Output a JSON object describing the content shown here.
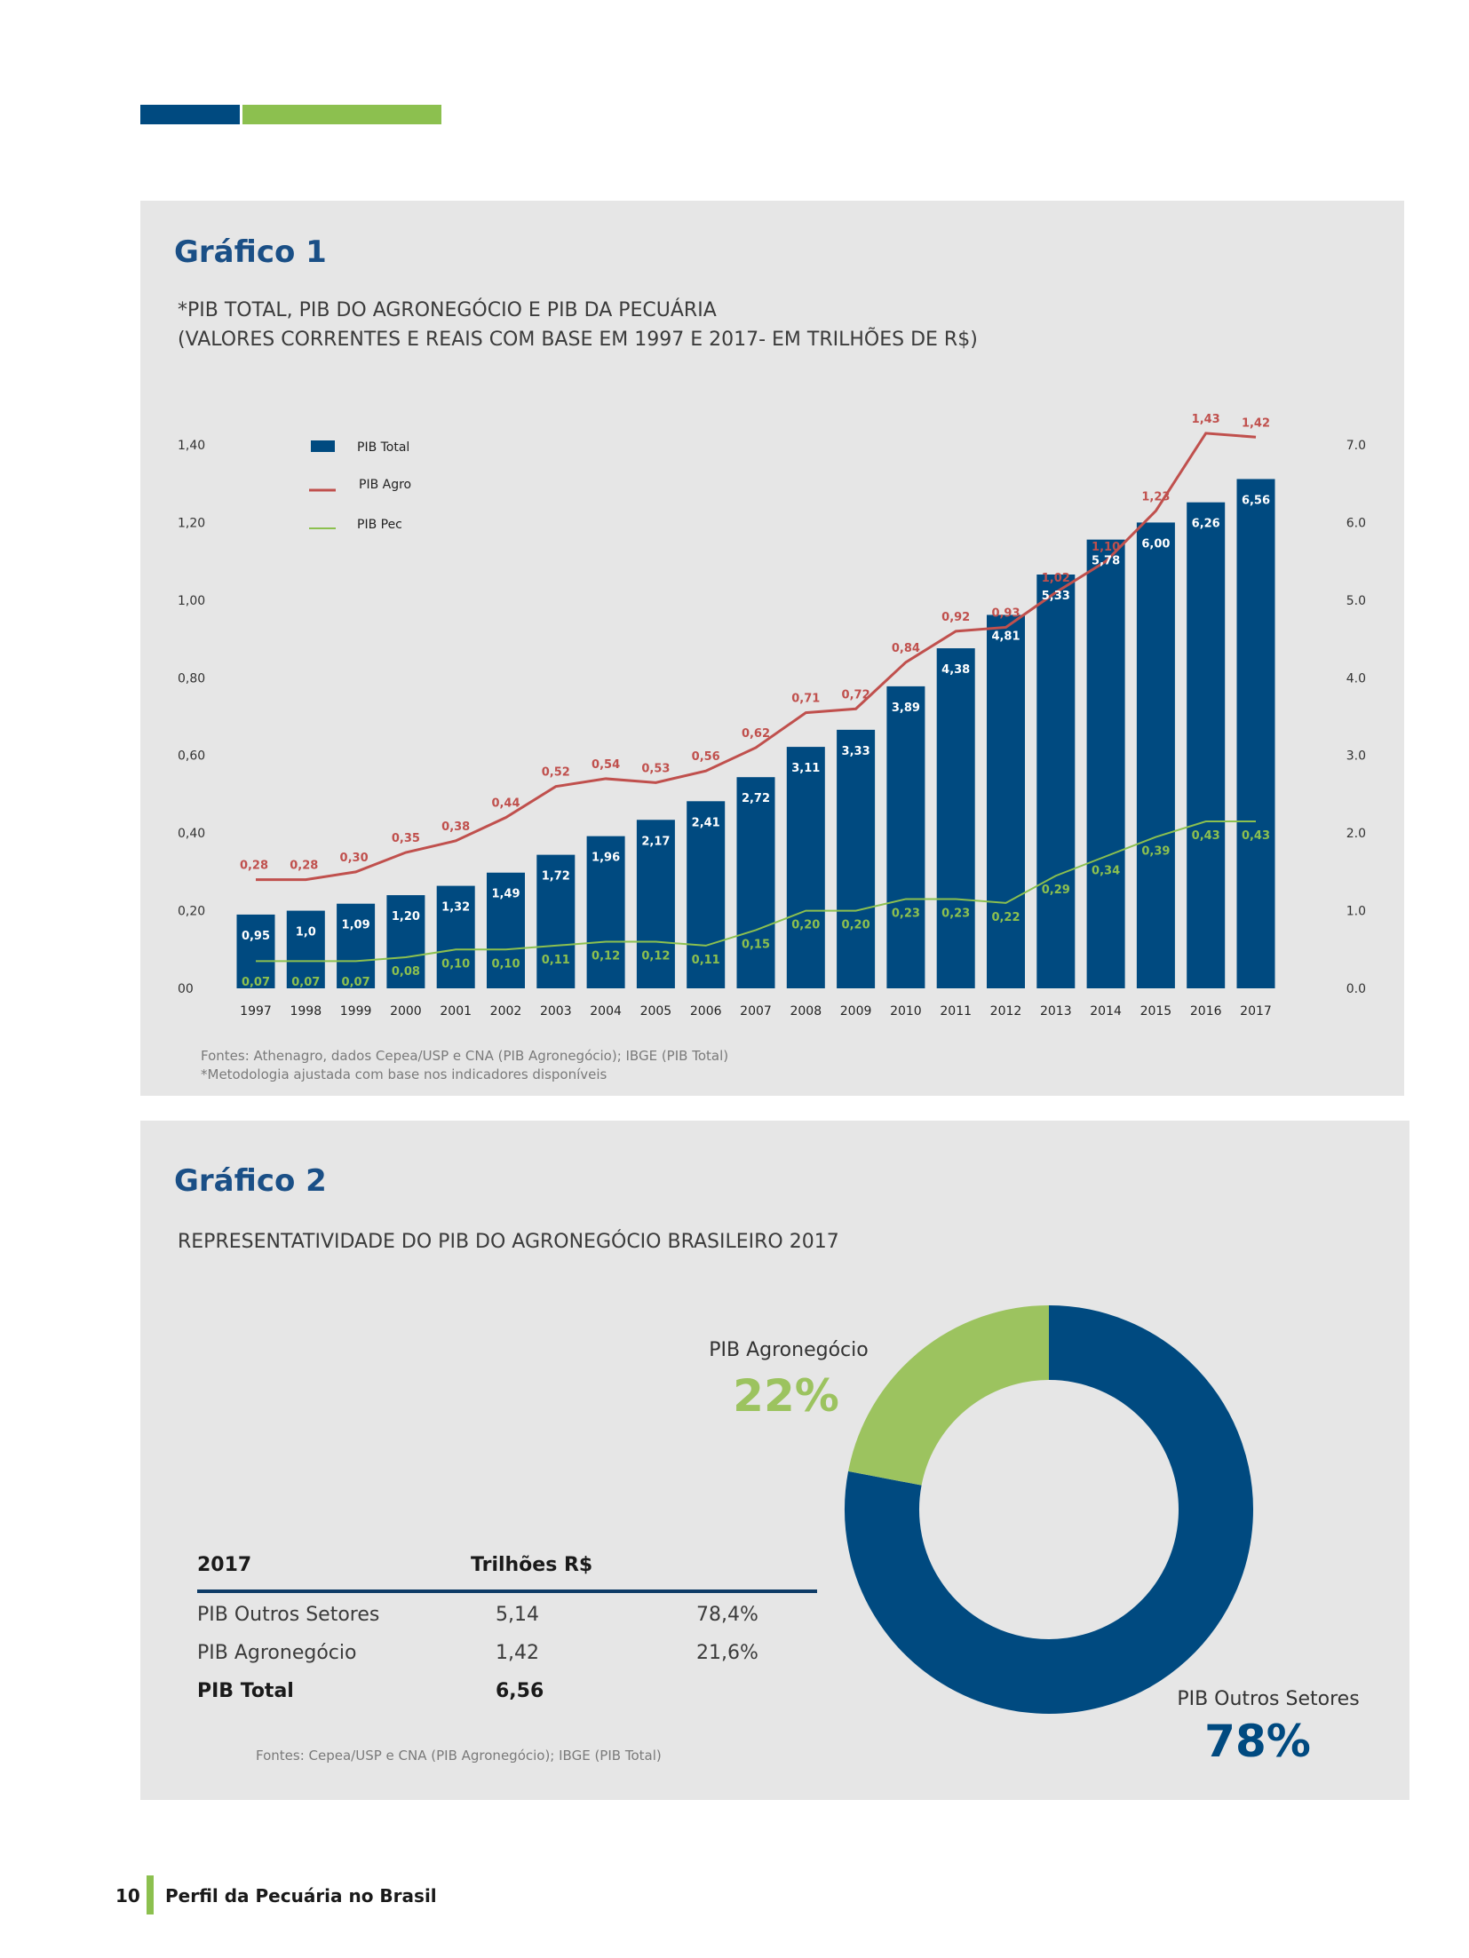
{
  "header_bar": {
    "colors": [
      "#004a80",
      "#8cc04f"
    ]
  },
  "figure1": {
    "title": "Gráfico 1",
    "subtitle_line1": "*PIB TOTAL, PIB DO AGRONEGÓCIO E PIB DA PECUÁRIA",
    "subtitle_line2": "(VALORES CORRENTES E REAIS COM BASE EM 1997 E 2017- EM TRILHÕES DE R$)",
    "source_line1": "Fontes: Athenagro, dados Cepea/USP e CNA (PIB Agronegócio); IBGE (PIB Total)",
    "source_line2": "*Metodologia ajustada com base nos indicadores disponíveis"
  },
  "chart_data": [
    {
      "type": "bar",
      "categories": [
        "1997",
        "1998",
        "1999",
        "2000",
        "2001",
        "2002",
        "2003",
        "2004",
        "2005",
        "2006",
        "2007",
        "2008",
        "2009",
        "2010",
        "2011",
        "2012",
        "2013",
        "2014",
        "2015",
        "2016",
        "2017"
      ],
      "series": [
        {
          "name": "PIB Total",
          "kind": "bar",
          "axis": "right",
          "color": "#004a80",
          "values": [
            0.95,
            1.0,
            1.09,
            1.2,
            1.32,
            1.49,
            1.72,
            1.96,
            2.17,
            2.41,
            2.72,
            3.11,
            3.33,
            3.89,
            4.38,
            4.81,
            5.33,
            5.78,
            6.0,
            6.26,
            6.56
          ],
          "labels": [
            "0,95",
            "1,0",
            "1,09",
            "1,20",
            "1,32",
            "1,49",
            "1,72",
            "1,96",
            "2,17",
            "2,41",
            "2,72",
            "3,11",
            "3,33",
            "3,89",
            "4,38",
            "4,81",
            "5,33",
            "5,78",
            "6,00",
            "6,26",
            "6,56"
          ]
        },
        {
          "name": "PIB Agro",
          "kind": "line",
          "axis": "left",
          "color": "#c0504d",
          "values": [
            0.28,
            0.28,
            0.3,
            0.35,
            0.38,
            0.44,
            0.52,
            0.54,
            0.53,
            0.56,
            0.62,
            0.71,
            0.72,
            0.84,
            0.92,
            0.93,
            1.02,
            1.1,
            1.23,
            1.43,
            1.42
          ],
          "labels": [
            "0,28",
            "0,28",
            "0,30",
            "0,35",
            "0,38",
            "0,44",
            "0,52",
            "0,54",
            "0,53",
            "0,56",
            "0,62",
            "0,71",
            "0,72",
            "0,84",
            "0,92",
            "0,93",
            "1,02",
            "1,10",
            "1,23",
            "1,43",
            "1,42"
          ]
        },
        {
          "name": "PIB Pec",
          "kind": "line",
          "axis": "left",
          "color": "#8cc04f",
          "values": [
            0.07,
            0.07,
            0.07,
            0.08,
            0.1,
            0.1,
            0.11,
            0.12,
            0.12,
            0.11,
            0.15,
            0.2,
            0.2,
            0.23,
            0.23,
            0.22,
            0.29,
            0.34,
            0.39,
            0.43,
            0.43
          ],
          "labels": [
            "0,07",
            "0,07",
            "0,07",
            "0,08",
            "0,10",
            "0,10",
            "0,11",
            "0,12",
            "0,12",
            "0,11",
            "0,15",
            "0,20",
            "0,20",
            "0,23",
            "0,23",
            "0,22",
            "0,29",
            "0,34",
            "0,39",
            "0,43",
            "0,43"
          ]
        }
      ],
      "y_left": {
        "min": 0,
        "max": 1.4,
        "ticks": [
          "00",
          "0,20",
          "0,40",
          "0,60",
          "0,80",
          "1,00",
          "1,20",
          "1,40"
        ]
      },
      "y_right": {
        "min": 0,
        "max": 7,
        "ticks": [
          "0.0",
          "1.0",
          "2.0",
          "3.0",
          "4.0",
          "5.0",
          "6.0",
          "7.0"
        ]
      },
      "grid": false,
      "legend": "top-left"
    },
    {
      "type": "pie",
      "donut": true,
      "slices": [
        {
          "name": "PIB Agronegócio",
          "percent_label": "22%",
          "value": 22,
          "color": "#9cc35f"
        },
        {
          "name": "PIB Outros Setores",
          "percent_label": "78%",
          "value": 78,
          "color": "#004a80"
        }
      ]
    }
  ],
  "figure2": {
    "title": "Gráfico 2",
    "subtitle": "REPRESENTATIVIDADE DO PIB DO AGRONEGÓCIO BRASILEIRO 2017",
    "table": {
      "header": [
        "2017",
        "Trilhões R$"
      ],
      "rows": [
        {
          "label": "PIB Outros Setores",
          "value": "5,14",
          "share": "78,4%"
        },
        {
          "label": "PIB Agronegócio",
          "value": "1,42",
          "share": "21,6%"
        },
        {
          "label": "PIB Total",
          "value": "6,56",
          "share": ""
        }
      ]
    },
    "source": "Fontes: Cepea/USP e CNA (PIB Agronegócio); IBGE (PIB Total)"
  },
  "footer": {
    "page_number": "10",
    "title": "Perfil da Pecuária no Brasil"
  }
}
